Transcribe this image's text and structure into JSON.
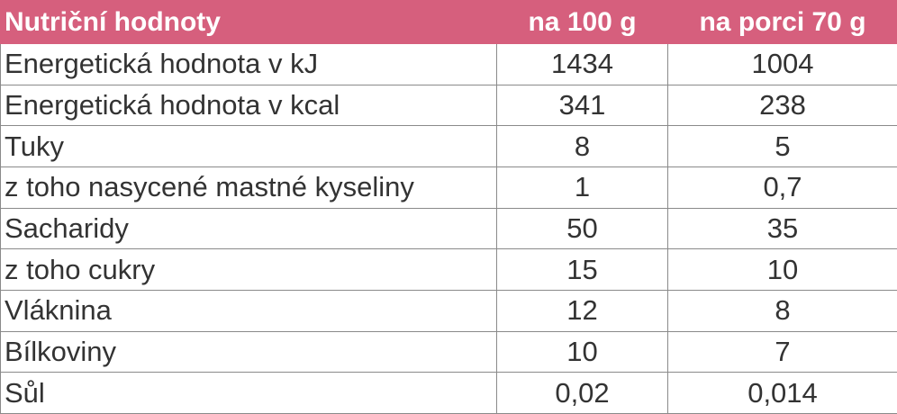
{
  "table": {
    "headers": [
      "Nutriční hodnoty",
      "na 100 g",
      "na porci 70 g"
    ],
    "rows": [
      [
        "Energetická hodnota v kJ",
        "1434",
        "1004"
      ],
      [
        "Energetická hodnota v kcal",
        "341",
        "238"
      ],
      [
        "Tuky",
        "8",
        "5"
      ],
      [
        "z toho nasycené mastné kyseliny",
        "1",
        "0,7"
      ],
      [
        "Sacharidy",
        "50",
        "35"
      ],
      [
        "z toho cukry",
        "15",
        "10"
      ],
      [
        "Vláknina",
        "12",
        "8"
      ],
      [
        "Bílkoviny",
        "10",
        "7"
      ],
      [
        "Sůl",
        "0,02",
        "0,014"
      ]
    ]
  }
}
